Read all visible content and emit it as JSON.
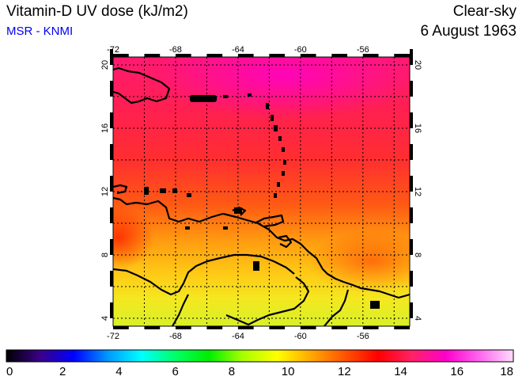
{
  "header": {
    "title": "Vitamin-D UV dose (kJ/m2)",
    "source": "MSR - KNMI",
    "condition": "Clear-sky",
    "date": "6 August 1963"
  },
  "map": {
    "lon_range": [
      -72,
      -53
    ],
    "lat_range": [
      3.5,
      20.5
    ],
    "lon_ticks": [
      "-72",
      "-68",
      "-64",
      "-60",
      "-56"
    ],
    "lat_ticks": [
      "4",
      "8",
      "12",
      "16",
      "20"
    ],
    "grid_lons": [
      -70,
      -68,
      -66,
      -64,
      -62,
      -60,
      -58,
      -56,
      -54
    ],
    "grid_lats": [
      4,
      6,
      8,
      10,
      12,
      14,
      16,
      18,
      20
    ]
  },
  "colorbar": {
    "labels": [
      "0",
      "2",
      "4",
      "6",
      "8",
      "10",
      "12",
      "14",
      "16",
      "18"
    ],
    "colors": [
      "#000000",
      "#3a0088",
      "#0000ff",
      "#0099ff",
      "#00ffff",
      "#00ff66",
      "#00ee00",
      "#aaff00",
      "#ffff00",
      "#ffaa00",
      "#ff5500",
      "#ff0000",
      "#ff2266",
      "#ff00cc",
      "#ff66ee",
      "#ffdcfa"
    ]
  }
}
